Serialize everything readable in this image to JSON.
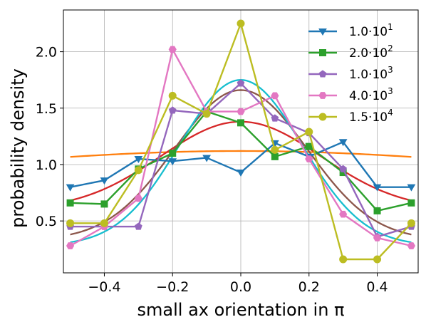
{
  "chart_data": {
    "type": "line",
    "xlabel": "small ax orientation  in π",
    "ylabel": "probability density",
    "xlim": [
      -0.52,
      0.52
    ],
    "ylim": [
      0.04,
      2.37
    ],
    "xticks": [
      -0.4,
      -0.2,
      0.0,
      0.2,
      0.4
    ],
    "xtick_labels": [
      "−0.4",
      "−0.2",
      "0.0",
      "0.2",
      "0.4"
    ],
    "yticks": [
      0.5,
      1.0,
      1.5,
      2.0
    ],
    "ytick_labels": [
      "0.5",
      "1.0",
      "1.5",
      "2.0"
    ],
    "grid": true,
    "legend_position": "top-right",
    "x": [
      -0.5,
      -0.4,
      -0.3,
      -0.2,
      -0.1,
      0.0,
      0.1,
      0.2,
      0.3,
      0.4,
      0.5
    ],
    "series": [
      {
        "name": "1.0·10^1",
        "color": "#1f77b4",
        "marker": "triangle-down",
        "values": [
          0.8,
          0.86,
          1.05,
          1.03,
          1.06,
          0.93,
          1.19,
          1.07,
          1.2,
          0.8,
          0.8
        ]
      },
      {
        "name": "2.0·10^2",
        "color": "#2ca02c",
        "marker": "square",
        "values": [
          0.66,
          0.65,
          0.96,
          1.1,
          1.47,
          1.37,
          1.07,
          1.16,
          0.93,
          0.59,
          0.66
        ]
      },
      {
        "name": "1.0·10^3",
        "color": "#9467bd",
        "marker": "pentagon",
        "values": [
          0.45,
          0.45,
          0.45,
          1.48,
          1.45,
          1.72,
          1.41,
          1.28,
          0.96,
          0.36,
          0.45
        ]
      },
      {
        "name": "4.0·10^3",
        "color": "#e377c2",
        "marker": "hexagon",
        "values": [
          0.28,
          0.45,
          0.7,
          2.02,
          1.47,
          1.47,
          1.61,
          1.05,
          0.56,
          0.35,
          0.28
        ]
      },
      {
        "name": "1.5·10^4",
        "color": "#bcbd22",
        "marker": "circle",
        "values": [
          0.48,
          0.48,
          0.95,
          1.61,
          1.45,
          2.25,
          1.13,
          1.29,
          0.16,
          0.16,
          0.48
        ]
      }
    ],
    "fits": [
      {
        "color": "#ff7f0e",
        "mu": 0.0,
        "sigma": 0.85,
        "base": 0.79,
        "amp": 0.33
      },
      {
        "color": "#d62728",
        "mu": 0.0,
        "sigma": 0.235,
        "base": 0.6,
        "amp": 0.78
      },
      {
        "color": "#8c564b",
        "mu": 0.0,
        "sigma": 0.195,
        "base": 0.33,
        "amp": 1.33
      },
      {
        "color": "#17becf",
        "mu": 0.0,
        "sigma": 0.18,
        "base": 0.28,
        "amp": 1.47
      }
    ],
    "legend": [
      {
        "mantissa": "1.0",
        "exponent": "1",
        "series_index": 0
      },
      {
        "mantissa": "2.0",
        "exponent": "2",
        "series_index": 1
      },
      {
        "mantissa": "1.0",
        "exponent": "3",
        "series_index": 2
      },
      {
        "mantissa": "4.0",
        "exponent": "3",
        "series_index": 3
      },
      {
        "mantissa": "1.5",
        "exponent": "4",
        "series_index": 4
      }
    ]
  }
}
